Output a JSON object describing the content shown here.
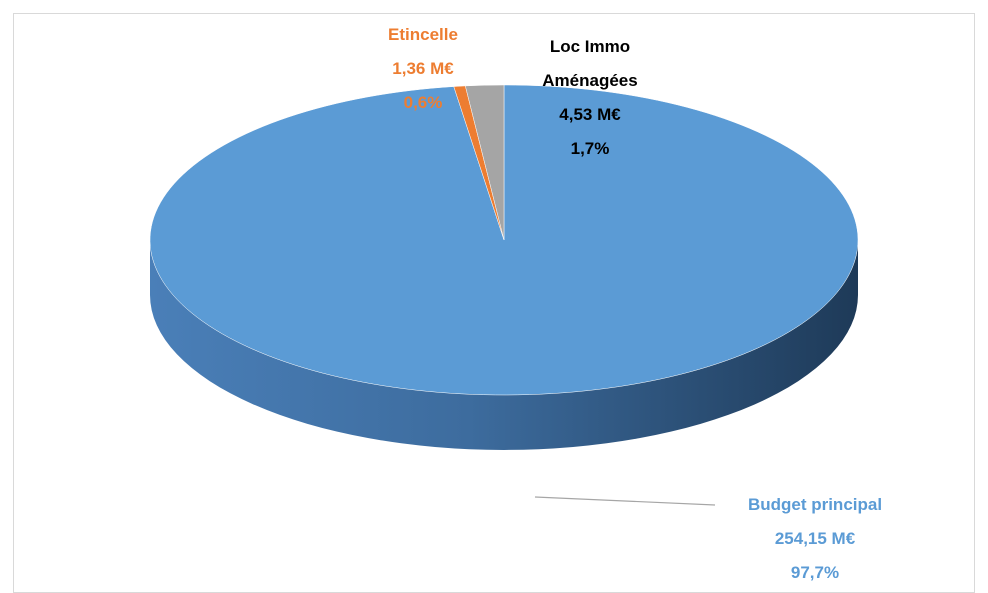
{
  "chart_data": {
    "type": "pie",
    "categories": [
      "Budget principal",
      "Etincelle",
      "Loc Immo Aménagées"
    ],
    "values": [
      254.15,
      1.36,
      4.53
    ],
    "value_labels": [
      "254,15 M€",
      "1,36 M€",
      "4,53 M€"
    ],
    "percents": [
      97.7,
      0.6,
      1.7
    ],
    "percent_labels": [
      "97,7%",
      "0,6%",
      "1,7%"
    ],
    "colors": [
      "#5b9bd5",
      "#ed7d31",
      "#a5a5a5"
    ],
    "label_colors": [
      "#5b9bd5",
      "#ed7d31",
      "#000000"
    ]
  }
}
